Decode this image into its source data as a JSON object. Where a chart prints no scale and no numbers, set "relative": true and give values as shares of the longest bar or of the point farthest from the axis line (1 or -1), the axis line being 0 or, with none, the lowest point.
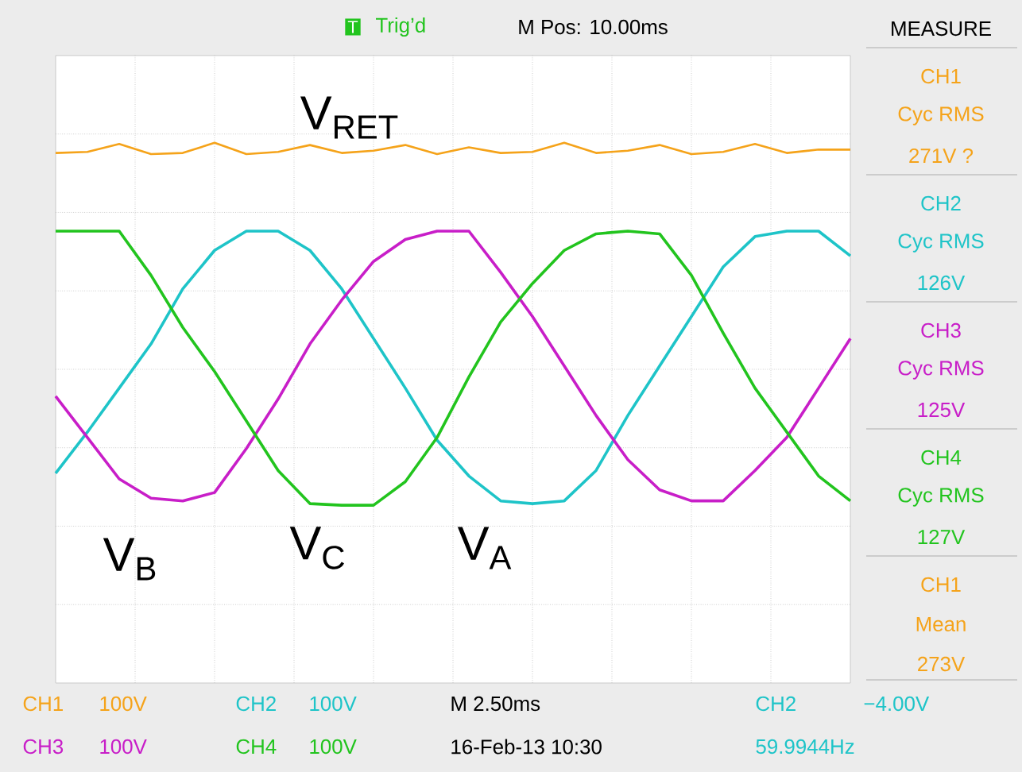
{
  "chart_data": {
    "type": "line",
    "relative": true,
    "grid": true,
    "tick_labels": false,
    "categories": [
      null,
      null,
      null,
      null,
      null,
      null,
      null,
      null,
      null,
      null,
      null,
      null,
      null,
      null,
      null,
      null,
      null,
      null,
      null,
      null,
      null,
      null,
      null,
      null,
      null,
      null
    ],
    "series": [
      {
        "name": "V$_{RET}$",
        "color": "#f5a31a",
        "values": [
          0.955,
          0.96,
          0.995,
          0.95,
          0.955,
          1.0,
          0.95,
          0.96,
          0.99,
          0.955,
          0.965,
          0.99,
          0.95,
          0.98,
          0.955,
          0.96,
          1.0,
          0.955,
          0.965,
          0.99,
          0.95,
          0.96,
          0.995,
          0.955,
          0.97,
          0.97
        ]
      },
      {
        "name": "V$_{A}$",
        "color": "#1ec4c8",
        "values": [
          -0.459,
          -0.277,
          -0.083,
          0.112,
          0.355,
          0.525,
          0.61,
          0.61,
          0.525,
          0.355,
          0.136,
          -0.083,
          -0.313,
          -0.471,
          -0.581,
          -0.593,
          -0.581,
          -0.447,
          -0.204,
          0.015,
          0.233,
          0.452,
          0.586,
          0.61,
          0.61,
          0.501
        ]
      },
      {
        "name": "V$_{B}$",
        "color": "#c81ec8",
        "values": [
          -0.119,
          -0.301,
          -0.484,
          -0.569,
          -0.581,
          -0.544,
          -0.35,
          -0.131,
          0.112,
          0.306,
          0.476,
          0.573,
          0.61,
          0.61,
          0.428,
          0.233,
          0.015,
          -0.204,
          -0.399,
          -0.532,
          -0.581,
          -0.581,
          -0.447,
          -0.301,
          -0.083,
          0.136
        ]
      },
      {
        "name": "V$_{C}$",
        "color": "#22c41e",
        "values": [
          0.61,
          0.61,
          0.61,
          0.415,
          0.185,
          -0.01,
          -0.228,
          -0.447,
          -0.593,
          -0.6,
          -0.6,
          -0.496,
          -0.301,
          -0.034,
          0.209,
          0.379,
          0.525,
          0.598,
          0.61,
          0.598,
          0.415,
          0.16,
          -0.083,
          -0.277,
          -0.471,
          -0.581
        ]
      }
    ],
    "annotations": [
      "T",
      "Trig’d",
      "M Pos: 10.00ms",
      "MEASURE",
      "CH1",
      "Cyc RMS",
      "271V ?",
      "CH2",
      "Cyc RMS",
      "126V",
      "CH3",
      "Cyc RMS",
      "125V",
      "CH4",
      "Cyc RMS",
      "127V",
      "CH1",
      "Mean",
      "273V",
      "CH1",
      "100V",
      "CH2",
      "100V",
      "M 2.50ms",
      "CH2",
      "−4.00V",
      "CH3",
      "100V",
      "CH4",
      "100V",
      "16-Feb-13 10:30",
      "59.9944Hz"
    ]
  }
}
